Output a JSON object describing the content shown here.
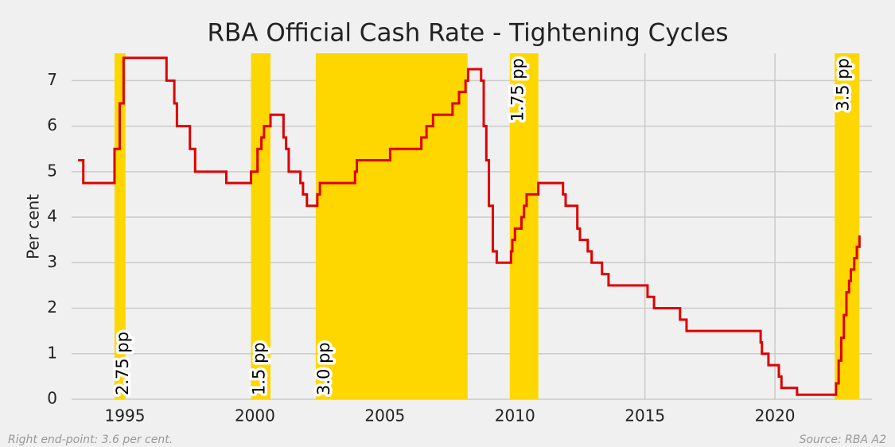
{
  "chart_data": {
    "type": "line",
    "title": "RBA Official Cash Rate - Tightening Cycles",
    "ylabel": "Per cent",
    "step": "post",
    "color": "#dd0000",
    "shade_color": "#ffd700",
    "grid": true,
    "xlim": [
      1992.95,
      2023.73
    ],
    "ylim": [
      0,
      7.6
    ],
    "xticks": [
      1995,
      2000,
      2005,
      2010,
      2015,
      2020
    ],
    "yticks": [
      0,
      1,
      2,
      3,
      4,
      5,
      6,
      7
    ],
    "x": [
      1993.2,
      1993.4,
      1994.6,
      1994.8,
      1994.95,
      1996.6,
      1996.9,
      1997.0,
      1997.5,
      1997.7,
      1998.9,
      1999.85,
      2000.1,
      2000.25,
      2000.35,
      2000.6,
      2001.1,
      2001.2,
      2001.3,
      2001.75,
      2001.85,
      2002.0,
      2002.4,
      2002.5,
      2003.85,
      2003.92,
      2005.2,
      2006.4,
      2006.6,
      2006.85,
      2007.6,
      2007.85,
      2008.1,
      2008.2,
      2008.7,
      2008.8,
      2008.9,
      2009.0,
      2009.15,
      2009.3,
      2009.85,
      2009.9,
      2010.0,
      2010.25,
      2010.35,
      2010.45,
      2010.9,
      2011.85,
      2011.95,
      2012.4,
      2012.5,
      2012.8,
      2012.95,
      2013.35,
      2013.6,
      2015.1,
      2015.35,
      2016.35,
      2016.6,
      2019.45,
      2019.5,
      2019.75,
      2020.15,
      2020.25,
      2020.85,
      2022.35,
      2022.45,
      2022.55,
      2022.65,
      2022.75,
      2022.85,
      2022.92,
      2023.05,
      2023.15,
      2023.25
    ],
    "values": [
      5.25,
      4.75,
      5.5,
      6.5,
      7.5,
      7.0,
      6.5,
      6.0,
      5.5,
      5.0,
      4.75,
      5.0,
      5.5,
      5.75,
      6.0,
      6.25,
      5.75,
      5.5,
      5.0,
      4.75,
      4.5,
      4.25,
      4.5,
      4.75,
      5.0,
      5.25,
      5.5,
      5.75,
      6.0,
      6.25,
      6.5,
      6.75,
      7.0,
      7.25,
      7.0,
      6.0,
      5.25,
      4.25,
      3.25,
      3.0,
      3.25,
      3.5,
      3.75,
      4.0,
      4.25,
      4.5,
      4.75,
      4.5,
      4.25,
      3.75,
      3.5,
      3.25,
      3.0,
      2.75,
      2.5,
      2.25,
      2.0,
      1.75,
      1.5,
      1.25,
      1.0,
      0.75,
      0.5,
      0.25,
      0.1,
      0.35,
      0.85,
      1.35,
      1.85,
      2.35,
      2.6,
      2.85,
      3.1,
      3.35,
      3.6
    ],
    "cycles": [
      {
        "start": 1994.6,
        "end": 1995.0,
        "label": "2.75 pp",
        "position": "bottom"
      },
      {
        "start": 1999.85,
        "end": 2000.6,
        "label": "1.5 pp",
        "position": "bottom"
      },
      {
        "start": 2002.34,
        "end": 2008.18,
        "label": "3.0 pp",
        "position": "bottom"
      },
      {
        "start": 2009.8,
        "end": 2010.9,
        "label": "1.75 pp",
        "position": "top"
      },
      {
        "start": 2022.3,
        "end": 2023.25,
        "label": "3.5 pp",
        "position": "top"
      }
    ],
    "footnote_left": "Right end-point: 3.6 per cent.",
    "footnote_right": "Source: RBA A2"
  }
}
